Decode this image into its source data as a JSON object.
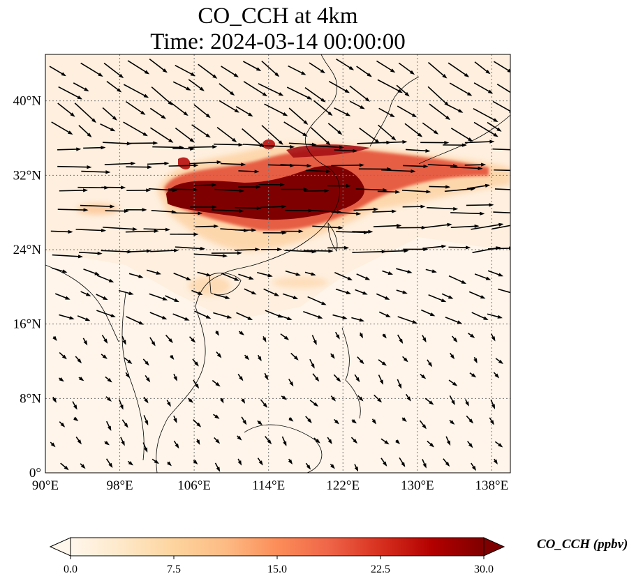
{
  "title": {
    "line1": "CO_CCH at 4km",
    "line2": "Time: 2024-03-14 00:00:00"
  },
  "map": {
    "lon_range": [
      90,
      140
    ],
    "lat_range": [
      0,
      45
    ],
    "lon_ticks": [
      "90°E",
      "98°E",
      "106°E",
      "114°E",
      "122°E",
      "130°E",
      "138°E"
    ],
    "lat_ticks": [
      "0°",
      "8°N",
      "16°N",
      "24°N",
      "32°N",
      "40°N"
    ],
    "gridlines": true,
    "field": "CO_CCH",
    "wind_vectors": true
  },
  "colorbar": {
    "label": "CO_CCH (ppbv)",
    "ticks": [
      "0.0",
      "7.5",
      "15.0",
      "22.5",
      "30.0"
    ],
    "range": [
      0,
      30
    ],
    "extend": "both",
    "colormap": "OrRd",
    "colors": [
      "#fff7ec",
      "#fee8c8",
      "#fdd49e",
      "#fdbb84",
      "#fc8d59",
      "#ef6548",
      "#d7301f",
      "#b30000",
      "#7f0000"
    ]
  }
}
